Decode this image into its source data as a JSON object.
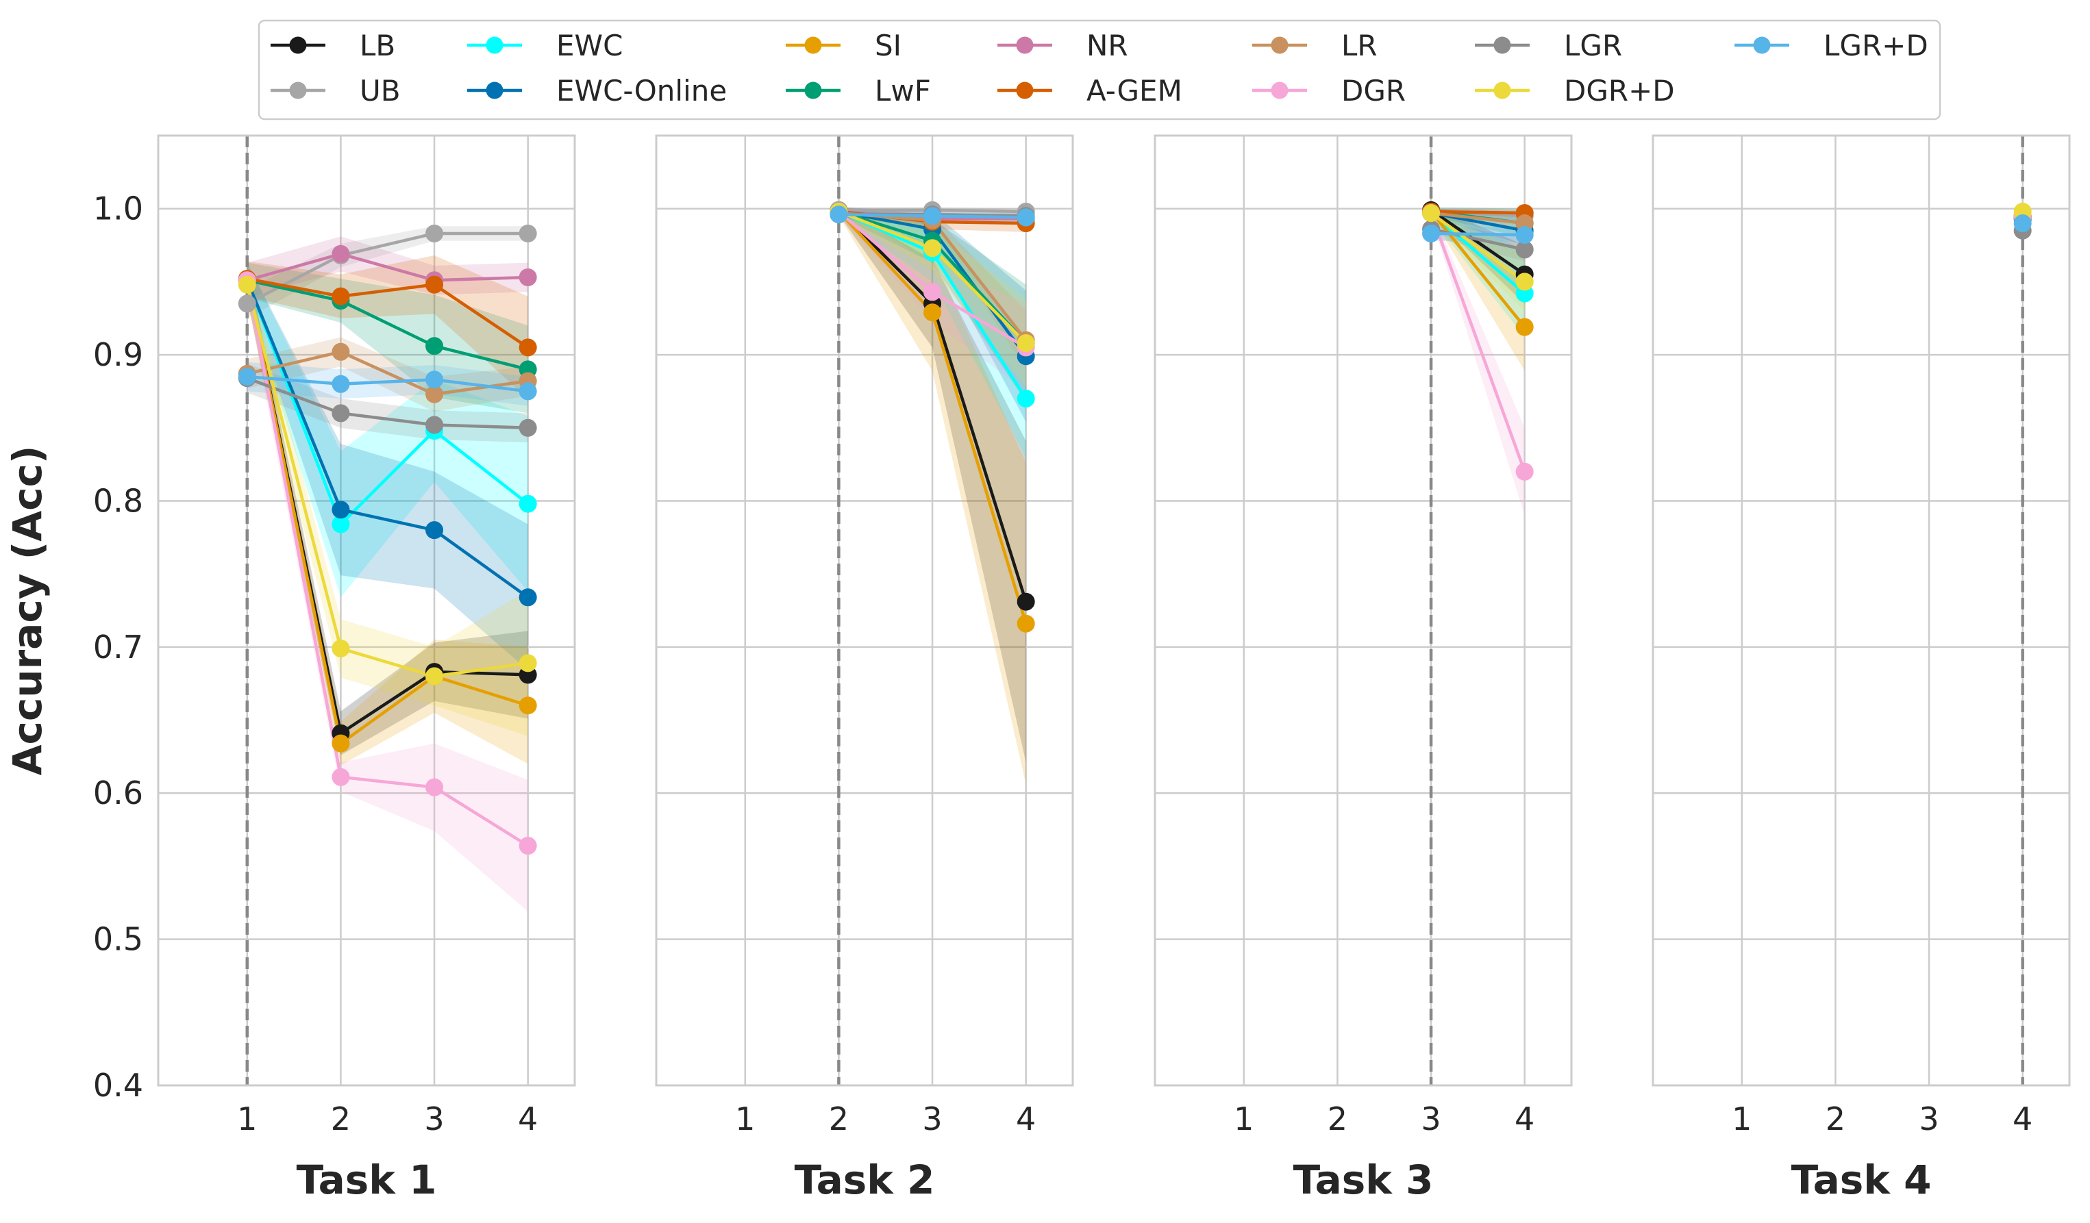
{
  "chart_data": {
    "type": "line",
    "ylabel": "Accuracy (Acc)",
    "ylim": [
      0.4,
      1.05
    ],
    "yticks": [
      "0.4",
      "0.5",
      "0.6",
      "0.7",
      "0.8",
      "0.9",
      "1.0"
    ],
    "ytick_values": [
      0.4,
      0.5,
      0.6,
      0.7,
      0.8,
      0.9,
      1.0
    ],
    "xticks": [
      "1",
      "2",
      "3",
      "4"
    ],
    "xtick_values": [
      1,
      2,
      3,
      4
    ],
    "xlim": [
      0.05,
      4.5
    ],
    "grid": true,
    "legend_position": "top",
    "series_meta": [
      {
        "name": "LB",
        "color": "#1a1a1a"
      },
      {
        "name": "UB",
        "color": "#a6a6a6"
      },
      {
        "name": "EWC",
        "color": "#00ffff"
      },
      {
        "name": "EWC-Online",
        "color": "#0072b2"
      },
      {
        "name": "SI",
        "color": "#e69f00"
      },
      {
        "name": "LwF",
        "color": "#009e73"
      },
      {
        "name": "NR",
        "color": "#cc79a7"
      },
      {
        "name": "A-GEM",
        "color": "#d55e00"
      },
      {
        "name": "LR",
        "color": "#c8915f"
      },
      {
        "name": "DGR",
        "color": "#f7a6d8"
      },
      {
        "name": "LGR",
        "color": "#8c8c8c"
      },
      {
        "name": "DGR+D",
        "color": "#ecd93a"
      },
      {
        "name": "LGR+D",
        "color": "#56b4e9"
      }
    ],
    "panels": [
      {
        "title": "Task 1",
        "start": 1,
        "series": [
          {
            "name": "LB",
            "x": [
              1,
              2,
              3,
              4
            ],
            "values": [
              0.951,
              0.641,
              0.683,
              0.681
            ],
            "band": [
              0.012,
              0.015,
              0.02,
              0.03
            ]
          },
          {
            "name": "UB",
            "x": [
              1,
              2,
              3,
              4
            ],
            "values": [
              0.935,
              0.968,
              0.983,
              0.983
            ],
            "band": [
              0.01,
              0.008,
              0.005,
              0.005
            ]
          },
          {
            "name": "EWC",
            "x": [
              1,
              2,
              3,
              4
            ],
            "values": [
              0.951,
              0.784,
              0.848,
              0.798
            ],
            "band": [
              0.012,
              0.05,
              0.035,
              0.06
            ]
          },
          {
            "name": "EWC-Online",
            "x": [
              1,
              2,
              3,
              4
            ],
            "values": [
              0.951,
              0.794,
              0.78,
              0.734
            ],
            "band": [
              0.012,
              0.045,
              0.04,
              0.05
            ]
          },
          {
            "name": "SI",
            "x": [
              1,
              2,
              3,
              4
            ],
            "values": [
              0.951,
              0.634,
              0.68,
              0.66
            ],
            "band": [
              0.012,
              0.015,
              0.025,
              0.04
            ]
          },
          {
            "name": "LwF",
            "x": [
              1,
              2,
              3,
              4
            ],
            "values": [
              0.951,
              0.937,
              0.906,
              0.89
            ],
            "band": [
              0.012,
              0.015,
              0.035,
              0.03
            ]
          },
          {
            "name": "NR",
            "x": [
              1,
              2,
              3,
              4
            ],
            "values": [
              0.951,
              0.969,
              0.951,
              0.953
            ],
            "band": [
              0.012,
              0.012,
              0.01,
              0.01
            ]
          },
          {
            "name": "A-GEM",
            "x": [
              1,
              2,
              3,
              4
            ],
            "values": [
              0.952,
              0.94,
              0.948,
              0.905
            ],
            "band": [
              0.012,
              0.015,
              0.02,
              0.035
            ]
          },
          {
            "name": "LR",
            "x": [
              1,
              2,
              3,
              4
            ],
            "values": [
              0.887,
              0.902,
              0.873,
              0.882
            ],
            "band": [
              0.01,
              0.01,
              0.012,
              0.01
            ]
          },
          {
            "name": "DGR",
            "x": [
              1,
              2,
              3,
              4
            ],
            "values": [
              0.951,
              0.611,
              0.604,
              0.564
            ],
            "band": [
              0.012,
              0.01,
              0.03,
              0.045
            ]
          },
          {
            "name": "LGR",
            "x": [
              1,
              2,
              3,
              4
            ],
            "values": [
              0.884,
              0.86,
              0.852,
              0.85
            ],
            "band": [
              0.01,
              0.01,
              0.01,
              0.01
            ]
          },
          {
            "name": "DGR+D",
            "x": [
              1,
              2,
              3,
              4
            ],
            "values": [
              0.948,
              0.699,
              0.68,
              0.689
            ],
            "band": [
              0.012,
              0.02,
              0.02,
              0.05
            ]
          },
          {
            "name": "LGR+D",
            "x": [
              1,
              2,
              3,
              4
            ],
            "values": [
              0.885,
              0.88,
              0.883,
              0.875
            ],
            "band": [
              0.01,
              0.01,
              0.01,
              0.01
            ]
          }
        ]
      },
      {
        "title": "Task 2",
        "start": 2,
        "series": [
          {
            "name": "LB",
            "x": [
              2,
              3,
              4
            ],
            "values": [
              0.999,
              0.935,
              0.731
            ],
            "band": [
              0.003,
              0.03,
              0.11
            ]
          },
          {
            "name": "UB",
            "x": [
              2,
              3,
              4
            ],
            "values": [
              0.999,
              0.999,
              0.998
            ],
            "band": [
              0.002,
              0.002,
              0.002
            ]
          },
          {
            "name": "EWC",
            "x": [
              2,
              3,
              4
            ],
            "values": [
              0.998,
              0.97,
              0.87
            ],
            "band": [
              0.003,
              0.02,
              0.04
            ]
          },
          {
            "name": "EWC-Online",
            "x": [
              2,
              3,
              4
            ],
            "values": [
              0.998,
              0.986,
              0.899
            ],
            "band": [
              0.003,
              0.012,
              0.045
            ]
          },
          {
            "name": "SI",
            "x": [
              2,
              3,
              4
            ],
            "values": [
              0.998,
              0.929,
              0.716
            ],
            "band": [
              0.003,
              0.04,
              0.11
            ]
          },
          {
            "name": "LwF",
            "x": [
              2,
              3,
              4
            ],
            "values": [
              0.998,
              0.978,
              0.908
            ],
            "band": [
              0.003,
              0.015,
              0.04
            ]
          },
          {
            "name": "NR",
            "x": [
              2,
              3,
              4
            ],
            "values": [
              0.998,
              0.993,
              0.993
            ],
            "band": [
              0.003,
              0.003,
              0.004
            ]
          },
          {
            "name": "A-GEM",
            "x": [
              2,
              3,
              4
            ],
            "values": [
              0.998,
              0.991,
              0.99
            ],
            "band": [
              0.003,
              0.005,
              0.006
            ]
          },
          {
            "name": "LR",
            "x": [
              2,
              3,
              4
            ],
            "values": [
              0.997,
              0.992,
              0.91
            ],
            "band": [
              0.003,
              0.004,
              0.02
            ]
          },
          {
            "name": "DGR",
            "x": [
              2,
              3,
              4
            ],
            "values": [
              0.998,
              0.943,
              0.905
            ],
            "band": [
              0.003,
              0.02,
              0.03
            ]
          },
          {
            "name": "LGR",
            "x": [
              2,
              3,
              4
            ],
            "values": [
              0.996,
              0.996,
              0.995
            ],
            "band": [
              0.003,
              0.003,
              0.003
            ]
          },
          {
            "name": "DGR+D",
            "x": [
              2,
              3,
              4
            ],
            "values": [
              0.998,
              0.973,
              0.908
            ],
            "band": [
              0.003,
              0.015,
              0.03
            ]
          },
          {
            "name": "LGR+D",
            "x": [
              2,
              3,
              4
            ],
            "values": [
              0.996,
              0.995,
              0.994
            ],
            "band": [
              0.003,
              0.003,
              0.003
            ]
          }
        ]
      },
      {
        "title": "Task 3",
        "start": 3,
        "series": [
          {
            "name": "LB",
            "x": [
              3,
              4
            ],
            "values": [
              0.999,
              0.955
            ],
            "band": [
              0.003,
              0.02
            ]
          },
          {
            "name": "UB",
            "x": [
              3,
              4
            ],
            "values": [
              0.998,
              0.995
            ],
            "band": [
              0.002,
              0.003
            ]
          },
          {
            "name": "EWC",
            "x": [
              3,
              4
            ],
            "values": [
              0.997,
              0.942
            ],
            "band": [
              0.003,
              0.03
            ]
          },
          {
            "name": "EWC-Online",
            "x": [
              3,
              4
            ],
            "values": [
              0.997,
              0.985
            ],
            "band": [
              0.003,
              0.01
            ]
          },
          {
            "name": "SI",
            "x": [
              3,
              4
            ],
            "values": [
              0.998,
              0.919
            ],
            "band": [
              0.003,
              0.03
            ]
          },
          {
            "name": "LwF",
            "x": [
              3,
              4
            ],
            "values": [
              0.998,
              0.99
            ],
            "band": [
              0.003,
              0.01
            ]
          },
          {
            "name": "NR",
            "x": [
              3,
              4
            ],
            "values": [
              0.998,
              0.997
            ],
            "band": [
              0.002,
              0.002
            ]
          },
          {
            "name": "A-GEM",
            "x": [
              3,
              4
            ],
            "values": [
              0.998,
              0.997
            ],
            "band": [
              0.002,
              0.002
            ]
          },
          {
            "name": "LR",
            "x": [
              3,
              4
            ],
            "values": [
              0.997,
              0.99
            ],
            "band": [
              0.003,
              0.005
            ]
          },
          {
            "name": "DGR",
            "x": [
              3,
              4
            ],
            "values": [
              0.997,
              0.82
            ],
            "band": [
              0.003,
              0.03
            ]
          },
          {
            "name": "LGR",
            "x": [
              3,
              4
            ],
            "values": [
              0.986,
              0.972
            ],
            "band": [
              0.005,
              0.008
            ]
          },
          {
            "name": "DGR+D",
            "x": [
              3,
              4
            ],
            "values": [
              0.997,
              0.95
            ],
            "band": [
              0.003,
              0.02
            ]
          },
          {
            "name": "LGR+D",
            "x": [
              3,
              4
            ],
            "values": [
              0.983,
              0.982
            ],
            "band": [
              0.005,
              0.005
            ]
          }
        ]
      },
      {
        "title": "Task 4",
        "start": 4,
        "series": [
          {
            "name": "LB",
            "x": [
              4
            ],
            "values": [
              0.993
            ],
            "band": [
              0.003
            ]
          },
          {
            "name": "UB",
            "x": [
              4
            ],
            "values": [
              0.995
            ],
            "band": [
              0.002
            ]
          },
          {
            "name": "EWC",
            "x": [
              4
            ],
            "values": [
              0.994
            ],
            "band": [
              0.003
            ]
          },
          {
            "name": "EWC-Online",
            "x": [
              4
            ],
            "values": [
              0.994
            ],
            "band": [
              0.003
            ]
          },
          {
            "name": "SI",
            "x": [
              4
            ],
            "values": [
              0.995
            ],
            "band": [
              0.003
            ]
          },
          {
            "name": "LwF",
            "x": [
              4
            ],
            "values": [
              0.995
            ],
            "band": [
              0.003
            ]
          },
          {
            "name": "NR",
            "x": [
              4
            ],
            "values": [
              0.995
            ],
            "band": [
              0.002
            ]
          },
          {
            "name": "A-GEM",
            "x": [
              4
            ],
            "values": [
              0.995
            ],
            "band": [
              0.002
            ]
          },
          {
            "name": "LR",
            "x": [
              4
            ],
            "values": [
              0.994
            ],
            "band": [
              0.003
            ]
          },
          {
            "name": "DGR",
            "x": [
              4
            ],
            "values": [
              0.995
            ],
            "band": [
              0.003
            ]
          },
          {
            "name": "LGR",
            "x": [
              4
            ],
            "values": [
              0.985
            ],
            "band": [
              0.004
            ]
          },
          {
            "name": "DGR+D",
            "x": [
              4
            ],
            "values": [
              0.998
            ],
            "band": [
              0.002
            ]
          },
          {
            "name": "LGR+D",
            "x": [
              4
            ],
            "values": [
              0.99
            ],
            "band": [
              0.003
            ]
          }
        ]
      }
    ]
  }
}
